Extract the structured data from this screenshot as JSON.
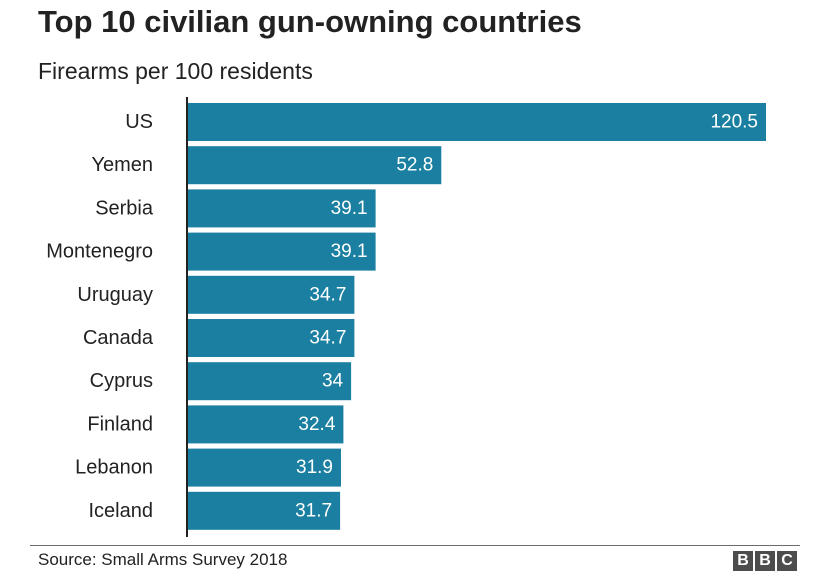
{
  "title": "Top 10 civilian gun-owning countries",
  "subtitle": "Firearms per 100 residents",
  "source": "Source: Small Arms Survey 2018",
  "logo": [
    "B",
    "B",
    "C"
  ],
  "colors": {
    "bar": "#1a7fa0",
    "bar_label": "#ffffff",
    "text": "#222222",
    "axis": "#222222"
  },
  "chart_data": {
    "type": "bar",
    "orientation": "horizontal",
    "title": "Top 10 civilian gun-owning countries",
    "subtitle": "Firearms per 100 residents",
    "categories": [
      "US",
      "Yemen",
      "Serbia",
      "Montenegro",
      "Uruguay",
      "Canada",
      "Cyprus",
      "Finland",
      "Lebanon",
      "Iceland"
    ],
    "values": [
      120.5,
      52.8,
      39.1,
      39.1,
      34.7,
      34.7,
      34,
      32.4,
      31.9,
      31.7
    ],
    "value_labels": [
      "120.5",
      "52.8",
      "39.1",
      "39.1",
      "34.7",
      "34.7",
      "34",
      "32.4",
      "31.9",
      "31.7"
    ],
    "xlim": [
      0,
      120.5
    ],
    "grid": false,
    "legend": "none"
  }
}
